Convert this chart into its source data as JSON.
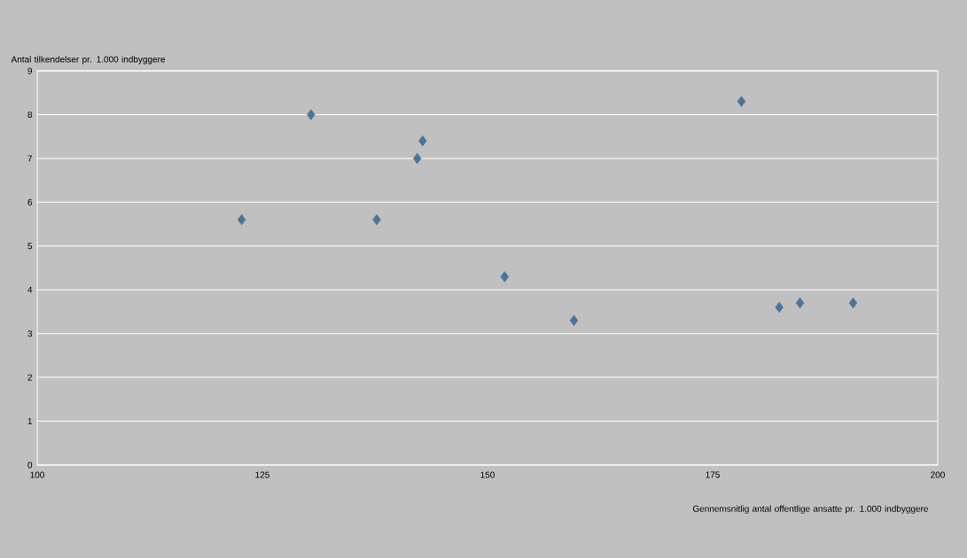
{
  "chart_data": {
    "type": "scatter",
    "xlabel": "Gennemsnitlig antal offentlige ansatte pr. 1.000 indbyggere",
    "ylabel": "Antal tilkendelser pr. 1.000 indbyggere",
    "x": [
      122.7,
      130.4,
      137.7,
      142.2,
      142.8,
      151.9,
      159.6,
      178.2,
      182.4,
      184.7,
      190.6
    ],
    "values": [
      5.6,
      8.0,
      5.6,
      7.0,
      7.4,
      4.3,
      3.3,
      8.3,
      3.6,
      3.7,
      3.7
    ],
    "color": "#4a7499",
    "marker": "diamond",
    "grid": "y",
    "xlim": [
      100,
      200
    ],
    "xticks": [
      100,
      125,
      150,
      175,
      200
    ],
    "ylim": [
      0,
      9
    ],
    "yticks": [
      0,
      1,
      2,
      3,
      4,
      5,
      6,
      7,
      8,
      9
    ]
  }
}
